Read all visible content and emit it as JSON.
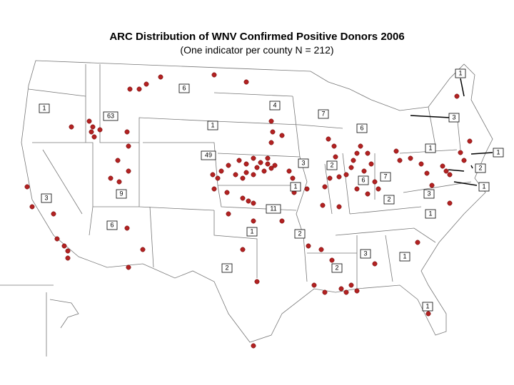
{
  "title": "ARC Distribution of WNV Confirmed Positive Donors 2006",
  "subtitle": "(One indicator per county N = 212)",
  "county_counts": [
    1,
    6,
    1,
    4,
    7,
    3,
    63,
    1,
    6,
    1,
    1,
    49,
    3,
    2,
    2,
    6,
    7,
    1,
    1,
    3,
    9,
    3,
    2,
    11,
    1,
    6,
    1,
    2,
    3,
    1,
    2,
    2,
    1
  ]
}
